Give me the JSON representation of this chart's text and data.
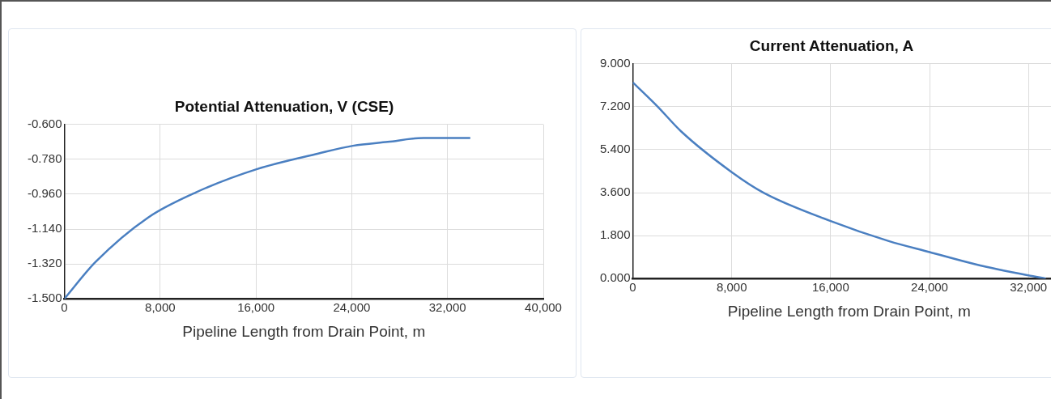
{
  "chart_data": [
    {
      "type": "line",
      "title": "Potential Attenuation, V (CSE)",
      "xlabel": "Pipeline Length from Drain Point, m",
      "xlim": [
        0,
        40000
      ],
      "xticks": [
        0,
        {
          "value": 8000,
          "label": "8,000"
        },
        {
          "value": 16000,
          "label": "16,000"
        },
        {
          "value": 24000,
          "label": "24,000"
        },
        {
          "value": 32000,
          "label": "32,000"
        },
        {
          "value": 40000,
          "label": "40,000"
        }
      ],
      "ylim": [
        -1.5,
        -0.6
      ],
      "yticks": [
        {
          "value": -1.5,
          "label": "-1.500"
        },
        {
          "value": -1.32,
          "label": "-1.320"
        },
        {
          "value": -1.14,
          "label": "-1.140"
        },
        {
          "value": -0.96,
          "label": "-0.960"
        },
        {
          "value": -0.78,
          "label": "-0.780"
        },
        {
          "value": -0.6,
          "label": "-0.600"
        }
      ],
      "grid": true,
      "legend": false,
      "marker": "none",
      "line_style": "solid",
      "x": [
        0,
        2600,
        7000,
        11000,
        16100,
        21200,
        24100,
        27000,
        30000,
        33900
      ],
      "series": [
        {
          "color": "#4a7fc1",
          "values": [
            -1.5,
            -1.31,
            -1.08,
            -0.95,
            -0.83,
            -0.75,
            -0.71,
            -0.69,
            -0.67,
            -0.67
          ]
        }
      ]
    },
    {
      "type": "line",
      "title": "Current Attenuation, A",
      "xlabel": "Pipeline Length from Drain Point, m",
      "xlim": [
        0,
        35000
      ],
      "xticks": [
        0,
        {
          "value": 8000,
          "label": "8,000"
        },
        {
          "value": 16000,
          "label": "16,000"
        },
        {
          "value": 24000,
          "label": "24,000"
        },
        {
          "value": 32000,
          "label": "32,000"
        }
      ],
      "ylim": [
        0,
        9
      ],
      "yticks": [
        {
          "value": 0,
          "label": "0.000"
        },
        {
          "value": 1.8,
          "label": "1.800"
        },
        {
          "value": 3.6,
          "label": "3.600"
        },
        {
          "value": 5.4,
          "label": "5.400"
        },
        {
          "value": 7.2,
          "label": "7.200"
        },
        {
          "value": 9,
          "label": "9.000"
        }
      ],
      "grid": true,
      "legend": false,
      "marker": "none",
      "line_style": "solid",
      "x": [
        0,
        2000,
        3900,
        8000,
        10600,
        16000,
        20700,
        24000,
        27700,
        31900,
        33400
      ],
      "series": [
        {
          "color": "#4a7fc1",
          "values": [
            8.22,
            7.21,
            6.17,
            4.46,
            3.59,
            2.41,
            1.57,
            1.11,
            0.6,
            0.14,
            0
          ]
        }
      ]
    }
  ]
}
